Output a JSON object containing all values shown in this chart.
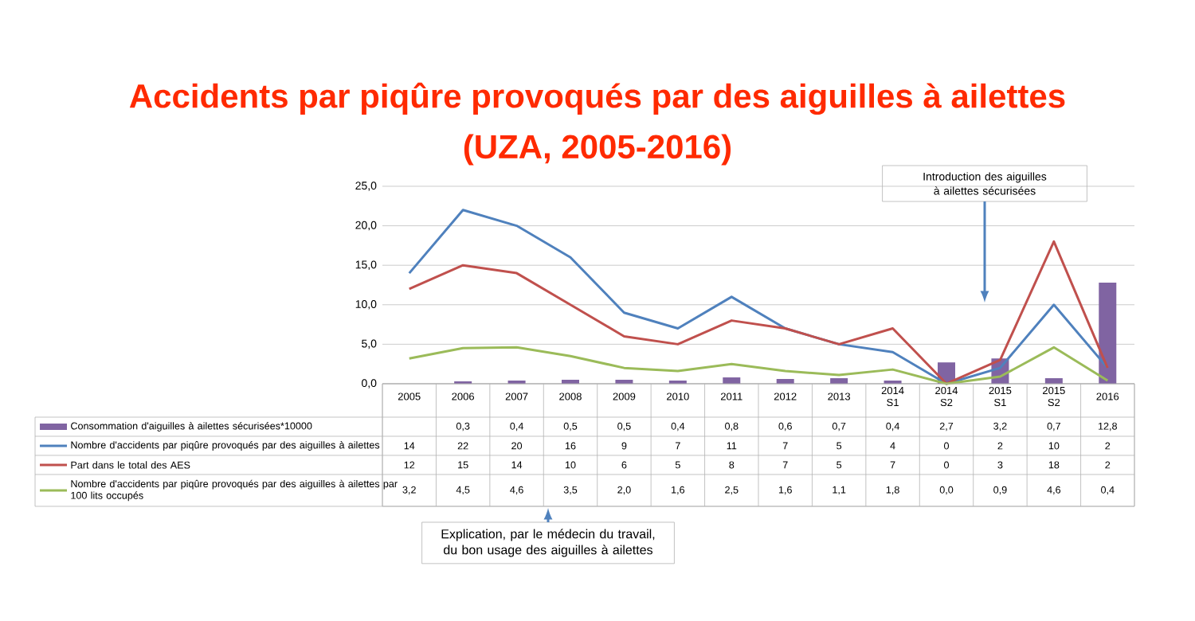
{
  "chart_data": {
    "type": "line",
    "title": "Accidents par piqûre provoqués par des aiguilles à ailettes",
    "subtitle": "(UZA, 2005-2016)",
    "categories": [
      "2005",
      "2006",
      "2007",
      "2008",
      "2009",
      "2010",
      "2011",
      "2012",
      "2013",
      "2014 S1",
      "2014 S2",
      "2015 S1",
      "2015 S2",
      "2016"
    ],
    "series": [
      {
        "name": "Consommation d'aiguilles à ailettes sécurisées*10000",
        "type": "bar",
        "color": "#8064a2",
        "values": [
          null,
          0.3,
          0.4,
          0.5,
          0.5,
          0.4,
          0.8,
          0.6,
          0.7,
          0.4,
          2.7,
          3.2,
          0.7,
          12.8
        ],
        "value_labels": [
          null,
          "0,3",
          "0,4",
          "0,5",
          "0,5",
          "0,4",
          "0,8",
          "0,6",
          "0,7",
          "0,4",
          "2,7",
          "3,2",
          "0,7",
          "12,8"
        ]
      },
      {
        "name": "Nombre d'accidents par piqûre provoqués par des aiguilles à ailettes",
        "color": "#4f81bd",
        "values": [
          14,
          22,
          20,
          16,
          9,
          7,
          11,
          7,
          5,
          4,
          0,
          2,
          10,
          2
        ],
        "value_labels": [
          "14",
          "22",
          "20",
          "16",
          "9",
          "7",
          "11",
          "7",
          "5",
          "4",
          "0",
          "2",
          "10",
          "2"
        ]
      },
      {
        "name": "Part dans le total des AES",
        "color": "#c0504d",
        "values": [
          12,
          15,
          14,
          10,
          6,
          5,
          8,
          7,
          5,
          7,
          0,
          3,
          18,
          2
        ],
        "value_labels": [
          "12",
          "15",
          "14",
          "10",
          "6",
          "5",
          "8",
          "7",
          "5",
          "7",
          "0",
          "3",
          "18",
          "2"
        ]
      },
      {
        "name": "Nombre d'accidents par piqûre provoqués par des aiguilles à ailettes par 100 lits occupés",
        "color": "#9bbb59",
        "values": [
          3.2,
          4.5,
          4.6,
          3.5,
          2.0,
          1.6,
          2.5,
          1.6,
          1.1,
          1.8,
          0.0,
          0.9,
          4.6,
          0.4
        ],
        "value_labels": [
          "3,2",
          "4,5",
          "4,6",
          "3,5",
          "2,0",
          "1,6",
          "2,5",
          "1,6",
          "1,1",
          "1,8",
          "0,0",
          "0,9",
          "4,6",
          "0,4"
        ]
      }
    ],
    "ylim": [
      0,
      25
    ],
    "yticks": [
      {
        "value": 0,
        "label": "0,0"
      },
      {
        "value": 5,
        "label": "5,0"
      },
      {
        "value": 10,
        "label": "10,0"
      },
      {
        "value": 15,
        "label": "15,0"
      },
      {
        "value": 20,
        "label": "20,0"
      },
      {
        "value": 25,
        "label": "25,0"
      }
    ],
    "grid": "y",
    "legend": "bottom left",
    "marker": "none",
    "line_style": "solid",
    "annotations": [
      "Introduction des aiguilles à ailettes sécurisées",
      "Explication, par le médecin du travail, du bon usage des aiguilles à ailettes"
    ]
  }
}
